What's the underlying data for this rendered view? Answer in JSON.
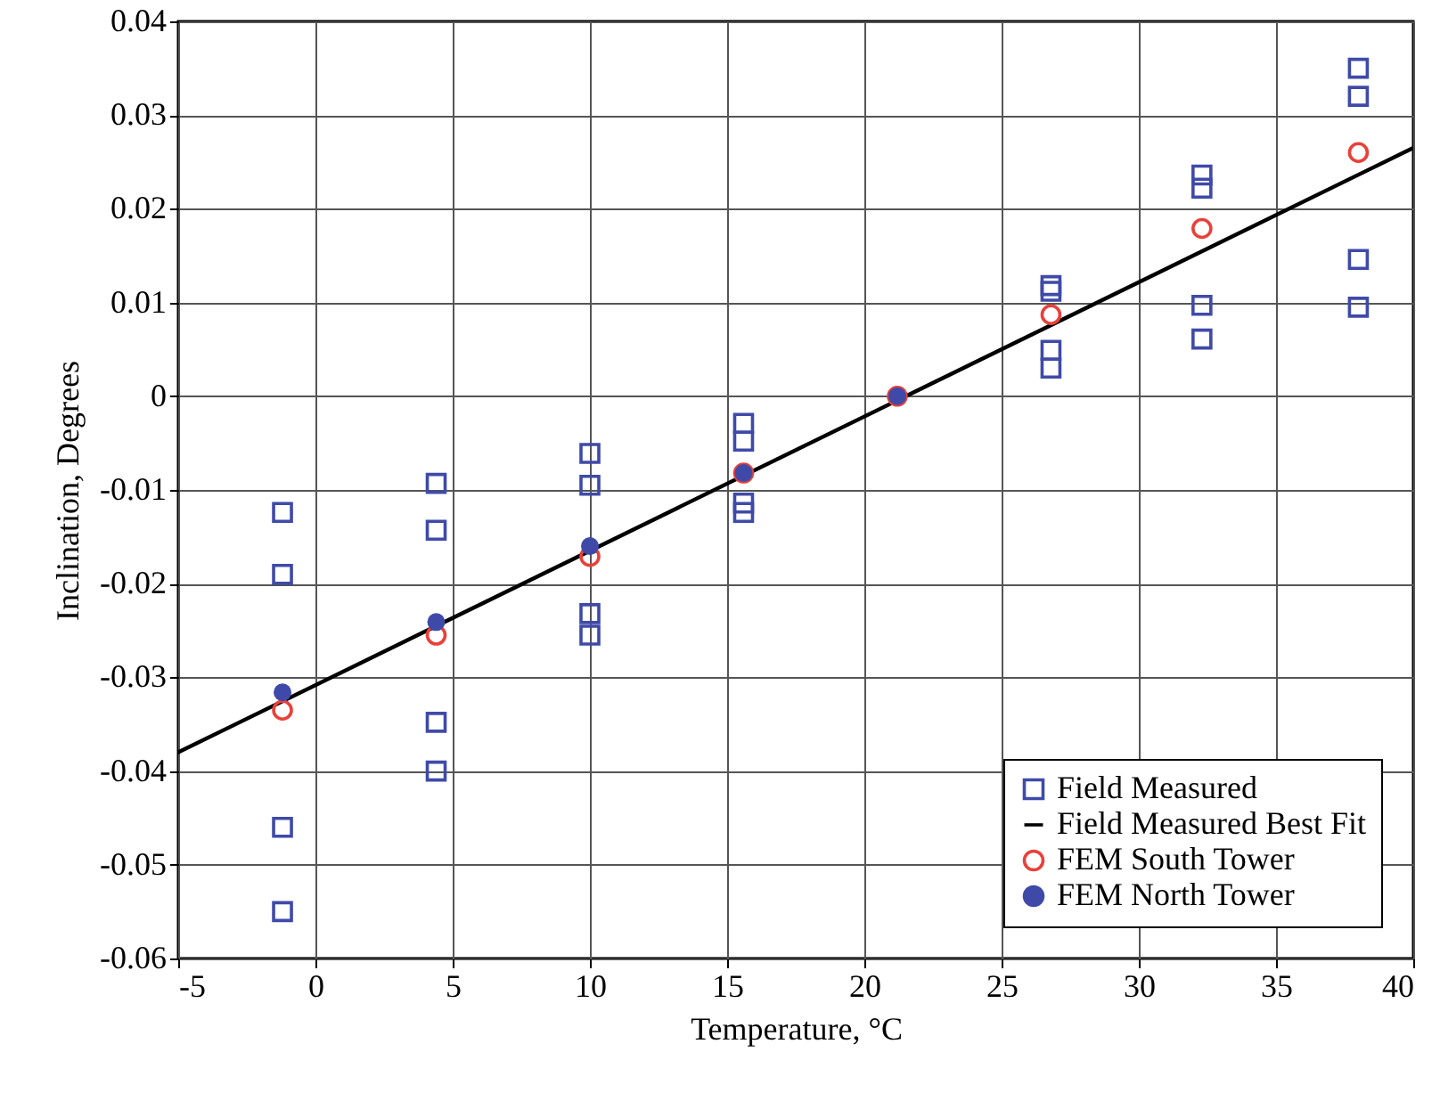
{
  "chart_data": {
    "type": "scatter",
    "xlabel": "Temperature, °C",
    "ylabel": "Inclination, Degrees",
    "xlim": [
      -5,
      40
    ],
    "ylim": [
      -0.06,
      0.04
    ],
    "xticks": [
      -5,
      0,
      5,
      10,
      15,
      20,
      25,
      30,
      35,
      40
    ],
    "yticks": [
      -0.06,
      -0.05,
      -0.04,
      -0.03,
      -0.02,
      -0.01,
      0,
      0.01,
      0.02,
      0.03,
      0.04
    ],
    "grid": true,
    "legend": "bottom right",
    "series": [
      {
        "name": "Field Measured",
        "type": "scatter",
        "marker": "square",
        "color": "#3f4aa8",
        "x": [
          -1.2,
          -1.2,
          -1.2,
          -1.2,
          4.4,
          4.4,
          4.4,
          4.4,
          10,
          10,
          10,
          10,
          15.6,
          15.6,
          15.6,
          15.6,
          26.8,
          26.8,
          26.8,
          26.8,
          32.3,
          32.3,
          32.3,
          32.3,
          38,
          38,
          38,
          38
        ],
        "values": [
          -0.0124,
          -0.019,
          -0.046,
          -0.055,
          -0.0093,
          -0.0143,
          -0.0348,
          -0.04,
          -0.0061,
          -0.0095,
          -0.0232,
          -0.0255,
          -0.0029,
          -0.0048,
          -0.0114,
          -0.0124,
          0.0118,
          0.0112,
          0.0049,
          0.003,
          0.0236,
          0.0222,
          0.0097,
          0.0061,
          0.035,
          0.032,
          0.0146,
          0.0095
        ]
      },
      {
        "name": "Field Measured Best Fit",
        "type": "line",
        "marker": "none",
        "line_style": "solid",
        "color": "#000000",
        "x": [
          -5,
          40
        ],
        "values": [
          -0.038,
          0.0265
        ]
      },
      {
        "name": "FEM South Tower",
        "type": "scatter",
        "marker": "circle",
        "color": "#e8413a",
        "x": [
          -1.2,
          4.4,
          10,
          15.6,
          21.2,
          26.8,
          32.3,
          38
        ],
        "values": [
          -0.0335,
          -0.0255,
          -0.0171,
          -0.0082,
          0,
          0.0087,
          0.0179,
          0.026
        ]
      },
      {
        "name": "FEM North Tower",
        "type": "scatter",
        "marker": "circle",
        "color": "#3f4aa8",
        "x": [
          -1.2,
          4.4,
          10,
          15.6,
          21.2
        ],
        "values": [
          -0.0316,
          -0.0241,
          -0.016,
          -0.0082,
          0
        ]
      }
    ]
  }
}
